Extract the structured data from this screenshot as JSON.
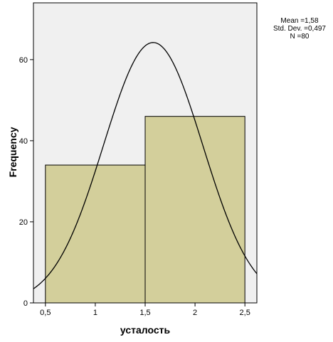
{
  "chart_data": {
    "type": "bar",
    "histogram": true,
    "bins": [
      {
        "from": 0.5,
        "to": 1.5,
        "count": 34
      },
      {
        "from": 1.5,
        "to": 2.5,
        "count": 46
      }
    ],
    "xlabel": "усталость",
    "ylabel": "Frequency",
    "xlim": [
      0.38,
      2.62
    ],
    "ylim": [
      0,
      74
    ],
    "x_ticks": [
      0.5,
      1,
      1.5,
      2,
      2.5
    ],
    "x_tick_labels": [
      "0,5",
      "1",
      "1,5",
      "2",
      "2,5"
    ],
    "y_ticks": [
      0,
      20,
      40,
      60
    ],
    "y_tick_labels": [
      "0",
      "20",
      "40",
      "60"
    ],
    "normal_curve": {
      "mean": 1.58,
      "std_dev": 0.497,
      "n": 80,
      "bin_width": 1
    },
    "stats": [
      "Mean =1,58",
      "Std. Dev. =0,497",
      "N =80"
    ],
    "colors": {
      "plot_bg": "#f0f0f0",
      "bar_fill": "#d3cf9b",
      "bar_stroke": "#000000",
      "curve": "#000000"
    }
  }
}
